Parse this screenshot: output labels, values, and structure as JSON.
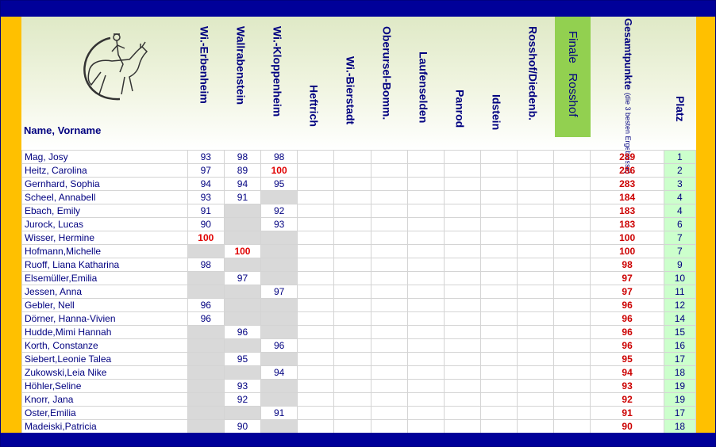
{
  "header": {
    "name_label": "Name, Vorname",
    "columns": [
      "Wi.-Erbenheim",
      "Wallrabenstein",
      "Wi.-Kloppenheim",
      "Heftrich",
      "Wi.-Bierstadt",
      "Oberursel-Bomm.",
      "Laufenselden",
      "Panrod",
      "Idstein",
      "Rosshof/Diedenb.",
      "Finale   Rosshof"
    ],
    "total_label": "Gesamtpunkte",
    "total_sub": "(die 3 besten Ergebnisse)",
    "rank_label": "Platz"
  },
  "colors": {
    "frame_bar": "#000099",
    "side_bar": "#ffc000",
    "finale_bg": "#92d050",
    "rank_bg": "#ccffcc",
    "missing_cell": "#d9d9d9",
    "max_score": "#e00000",
    "text": "#000080"
  },
  "logo": "horse-rider-logo",
  "rows": [
    {
      "name": "Mag, Josy",
      "scores": [
        "93",
        "98",
        "98",
        "",
        "",
        "",
        "",
        "",
        "",
        "",
        ""
      ],
      "total": "289",
      "rank": "1"
    },
    {
      "name": "Heitz, Carolina",
      "scores": [
        "97",
        "89",
        "100",
        "",
        "",
        "",
        "",
        "",
        "",
        "",
        ""
      ],
      "total": "286",
      "rank": "2"
    },
    {
      "name": "Gernhard, Sophia",
      "scores": [
        "94",
        "94",
        "95",
        "",
        "",
        "",
        "",
        "",
        "",
        "",
        ""
      ],
      "total": "283",
      "rank": "3"
    },
    {
      "name": "Scheel, Annabell",
      "scores": [
        "93",
        "91",
        "",
        "",
        "",
        "",
        "",
        "",
        "",
        "",
        ""
      ],
      "total": "184",
      "rank": "4"
    },
    {
      "name": "Ebach, Emily",
      "scores": [
        "91",
        "",
        "92",
        "",
        "",
        "",
        "",
        "",
        "",
        "",
        ""
      ],
      "total": "183",
      "rank": "4"
    },
    {
      "name": "Jurock, Lucas",
      "scores": [
        "90",
        "",
        "93",
        "",
        "",
        "",
        "",
        "",
        "",
        "",
        ""
      ],
      "total": "183",
      "rank": "6"
    },
    {
      "name": "Wisser, Hermine",
      "scores": [
        "100",
        "",
        "",
        "",
        "",
        "",
        "",
        "",
        "",
        "",
        ""
      ],
      "total": "100",
      "rank": "7"
    },
    {
      "name": "Hofmann,Michelle",
      "scores": [
        "",
        "100",
        "",
        "",
        "",
        "",
        "",
        "",
        "",
        "",
        ""
      ],
      "total": "100",
      "rank": "7"
    },
    {
      "name": "Ruoff, Liana Katharina",
      "scores": [
        "98",
        "",
        "",
        "",
        "",
        "",
        "",
        "",
        "",
        "",
        ""
      ],
      "total": "98",
      "rank": "9"
    },
    {
      "name": "Elsemüller,Emilia",
      "scores": [
        "",
        "97",
        "",
        "",
        "",
        "",
        "",
        "",
        "",
        "",
        ""
      ],
      "total": "97",
      "rank": "10"
    },
    {
      "name": "Jessen, Anna",
      "scores": [
        "",
        "",
        "97",
        "",
        "",
        "",
        "",
        "",
        "",
        "",
        ""
      ],
      "total": "97",
      "rank": "11"
    },
    {
      "name": "Gebler, Nell",
      "scores": [
        "96",
        "",
        "",
        "",
        "",
        "",
        "",
        "",
        "",
        "",
        ""
      ],
      "total": "96",
      "rank": "12"
    },
    {
      "name": "Dörner, Hanna-Vivien",
      "scores": [
        "96",
        "",
        "",
        "",
        "",
        "",
        "",
        "",
        "",
        "",
        ""
      ],
      "total": "96",
      "rank": "14"
    },
    {
      "name": "Hudde,Mimi Hannah",
      "scores": [
        "",
        "96",
        "",
        "",
        "",
        "",
        "",
        "",
        "",
        "",
        ""
      ],
      "total": "96",
      "rank": "15"
    },
    {
      "name": "Korth, Constanze",
      "scores": [
        "",
        "",
        "96",
        "",
        "",
        "",
        "",
        "",
        "",
        "",
        ""
      ],
      "total": "96",
      "rank": "16"
    },
    {
      "name": "Siebert,Leonie Talea",
      "scores": [
        "",
        "95",
        "",
        "",
        "",
        "",
        "",
        "",
        "",
        "",
        ""
      ],
      "total": "95",
      "rank": "17"
    },
    {
      "name": "Zukowski,Leia Nike",
      "scores": [
        "",
        "",
        "94",
        "",
        "",
        "",
        "",
        "",
        "",
        "",
        ""
      ],
      "total": "94",
      "rank": "18"
    },
    {
      "name": "Höhler,Seline",
      "scores": [
        "",
        "93",
        "",
        "",
        "",
        "",
        "",
        "",
        "",
        "",
        ""
      ],
      "total": "93",
      "rank": "19"
    },
    {
      "name": "Knorr, Jana",
      "scores": [
        "",
        "92",
        "",
        "",
        "",
        "",
        "",
        "",
        "",
        "",
        ""
      ],
      "total": "92",
      "rank": "19"
    },
    {
      "name": "Oster,Emilia",
      "scores": [
        "",
        "",
        "91",
        "",
        "",
        "",
        "",
        "",
        "",
        "",
        ""
      ],
      "total": "91",
      "rank": "17"
    },
    {
      "name": "Madeiski,Patricia",
      "scores": [
        "",
        "90",
        "",
        "",
        "",
        "",
        "",
        "",
        "",
        "",
        ""
      ],
      "total": "90",
      "rank": "18"
    }
  ]
}
